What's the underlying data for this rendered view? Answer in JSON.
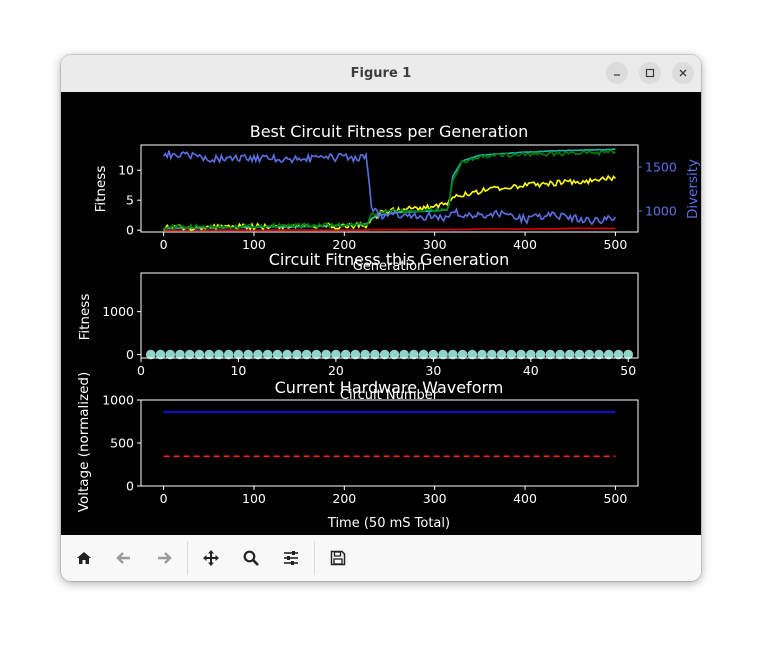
{
  "window": {
    "title": "Figure 1"
  },
  "colors": {
    "fitness_green": "#008000",
    "teal": "#20b2aa",
    "yellow": "#ffff00",
    "red": "#e00000",
    "diversity_blue": "#5b6fe0",
    "dot": "#8fd4c8",
    "voltage_blue": "#1010ff",
    "voltage_red": "#ff2020"
  },
  "toolbar": {
    "home": "home-icon",
    "back": "back-arrow-icon",
    "forward": "forward-arrow-icon",
    "pan": "move-icon",
    "zoom": "zoom-icon",
    "configure": "sliders-icon",
    "save": "save-icon"
  },
  "chart_data": [
    {
      "type": "line",
      "title": "Best Circuit Fitness per Generation",
      "xlabel": "Generation",
      "ylabel": "Fitness",
      "ylabel_right": "Diversity",
      "xlim": [
        -25,
        525
      ],
      "ylim": [
        -0.3,
        14.2
      ],
      "ylim_right": [
        760,
        1750
      ],
      "xticks": [
        "0",
        "100",
        "200",
        "300",
        "400",
        "500"
      ],
      "yticks": [
        "0",
        "5",
        "10"
      ],
      "yticks_right": [
        "1000",
        "1500"
      ],
      "x": [
        0,
        50,
        100,
        150,
        200,
        225,
        230,
        240,
        260,
        300,
        315,
        320,
        330,
        350,
        380,
        400,
        430,
        450,
        480,
        500
      ],
      "series": [
        {
          "color": "green",
          "axis": "left",
          "values": [
            0.5,
            0.6,
            0.7,
            0.8,
            0.8,
            0.9,
            2.5,
            3.0,
            3.2,
            3.3,
            3.5,
            8.0,
            11.2,
            12.2,
            12.5,
            12.7,
            12.7,
            12.8,
            12.9,
            13.0
          ]
        },
        {
          "color": "teal",
          "axis": "left",
          "values": [
            0.3,
            0.4,
            0.5,
            0.6,
            0.8,
            1.0,
            2.0,
            2.5,
            3.0,
            3.2,
            3.4,
            9.0,
            11.5,
            12.5,
            12.8,
            13.0,
            13.2,
            13.3,
            13.4,
            13.5
          ]
        },
        {
          "color": "yellow",
          "axis": "left",
          "values": [
            0.4,
            0.5,
            0.6,
            0.7,
            0.7,
            0.8,
            1.5,
            3.0,
            3.4,
            3.8,
            4.5,
            5.5,
            6.0,
            6.5,
            7.2,
            7.5,
            7.8,
            8.0,
            8.3,
            8.8
          ]
        },
        {
          "color": "red",
          "axis": "left",
          "values": [
            0.0,
            0.0,
            0.0,
            0.0,
            0.0,
            0.0,
            0.1,
            0.1,
            0.1,
            0.1,
            0.1,
            0.1,
            0.1,
            0.2,
            0.2,
            0.2,
            0.2,
            0.3,
            0.3,
            0.3
          ]
        },
        {
          "color": "diversity",
          "axis": "right",
          "values": [
            1650,
            1600,
            1600,
            1590,
            1610,
            1600,
            1020,
            950,
            960,
            930,
            920,
            990,
            950,
            960,
            980,
            900,
            960,
            920,
            880,
            930
          ]
        }
      ]
    },
    {
      "type": "scatter",
      "title": "Circuit Fitness this Generation",
      "xlabel": "Circuit Number",
      "ylabel": "Fitness",
      "xlim": [
        0,
        51
      ],
      "ylim": [
        -80,
        1900
      ],
      "xticks": [
        "0",
        "10",
        "20",
        "30",
        "40",
        "50"
      ],
      "yticks": [
        "0",
        "1000"
      ],
      "x": [
        1,
        2,
        3,
        4,
        5,
        6,
        7,
        8,
        9,
        10,
        11,
        12,
        13,
        14,
        15,
        16,
        17,
        18,
        19,
        20,
        21,
        22,
        23,
        24,
        25,
        26,
        27,
        28,
        29,
        30,
        31,
        32,
        33,
        34,
        35,
        36,
        37,
        38,
        39,
        40,
        41,
        42,
        43,
        44,
        45,
        46,
        47,
        48,
        49,
        50
      ],
      "values": [
        0,
        0,
        0,
        0,
        0,
        0,
        0,
        0,
        0,
        0,
        0,
        0,
        0,
        0,
        0,
        0,
        0,
        0,
        0,
        0,
        0,
        0,
        0,
        0,
        0,
        0,
        0,
        0,
        0,
        0,
        0,
        0,
        0,
        0,
        0,
        0,
        0,
        0,
        0,
        0,
        0,
        0,
        0,
        0,
        0,
        0,
        0,
        0,
        0,
        0
      ]
    },
    {
      "type": "line",
      "title": "Current Hardware Waveform",
      "xlabel": "Time (50 mS Total)",
      "ylabel": "Voltage (normalized)",
      "xlim": [
        -25,
        525
      ],
      "ylim": [
        0,
        1000
      ],
      "xticks": [
        "0",
        "100",
        "200",
        "300",
        "400",
        "500"
      ],
      "yticks": [
        "0",
        "500",
        "1000"
      ],
      "x": [
        0,
        500
      ],
      "series": [
        {
          "color": "blue",
          "style": "solid",
          "values": [
            860,
            860
          ]
        },
        {
          "color": "red",
          "style": "dashed",
          "values": [
            345,
            345
          ]
        }
      ]
    }
  ]
}
